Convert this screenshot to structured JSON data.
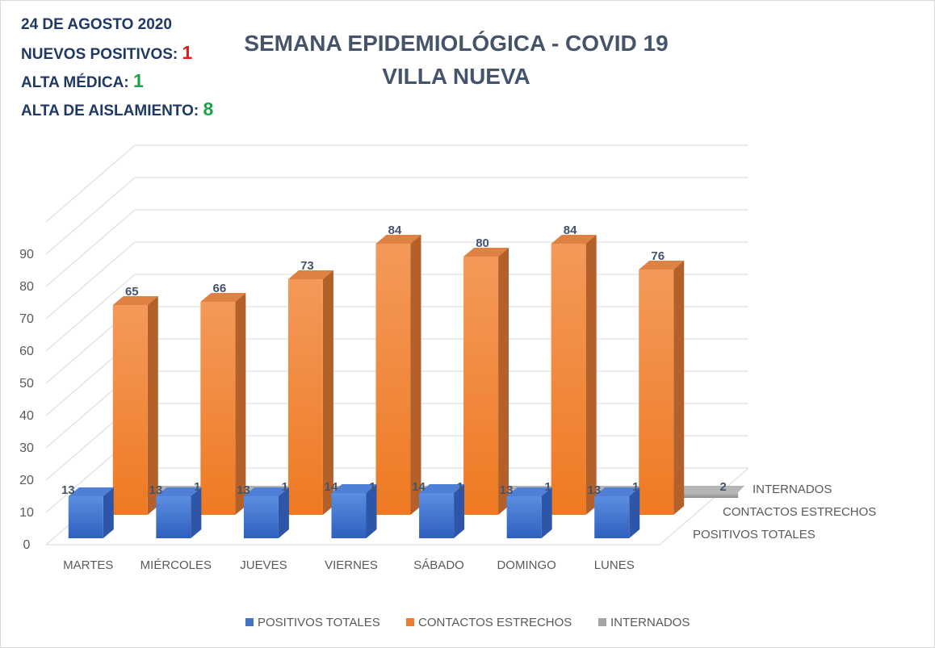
{
  "header": {
    "date": "24 DE AGOSTO 2020",
    "nuevos_label": "NUEVOS POSITIVOS:",
    "nuevos_value": "1",
    "alta_medica_label": "ALTA MÉDICA:",
    "alta_medica_value": "1",
    "alta_aislamiento_label": "ALTA DE AISLAMIENTO:",
    "alta_aislamiento_value": "8"
  },
  "colors": {
    "red": "#e31a1c",
    "green": "#1aa34a",
    "blue": "#4472c4",
    "orange": "#ed7d31",
    "gray": "#a5a5a5"
  },
  "chart_data": {
    "type": "bar",
    "title": "SEMANA EPIDEMIOLÓGICA - COVID 19",
    "subtitle": "VILLA NUEVA",
    "categories": [
      "MARTES",
      "MIÉRCOLES",
      "JUEVES",
      "VIERNES",
      "SÁBADO",
      "DOMINGO",
      "LUNES"
    ],
    "series": [
      {
        "name": "POSITIVOS TOTALES",
        "values": [
          13,
          13,
          13,
          14,
          14,
          13,
          13
        ]
      },
      {
        "name": "CONTACTOS ESTRECHOS",
        "values": [
          65,
          66,
          73,
          84,
          80,
          84,
          76
        ]
      },
      {
        "name": "INTERNADOS",
        "values": [
          1,
          1,
          1,
          1,
          1,
          1,
          2
        ]
      }
    ],
    "y_ticks": [
      "0",
      "10",
      "20",
      "30",
      "40",
      "50",
      "60",
      "70",
      "80",
      "90"
    ],
    "ylim": [
      0,
      90
    ],
    "grid": true,
    "legend": "bottom",
    "depth_labels": [
      "INTERNADOS",
      "CONTACTOS ESTRECHOS",
      "POSITIVOS TOTALES"
    ]
  }
}
